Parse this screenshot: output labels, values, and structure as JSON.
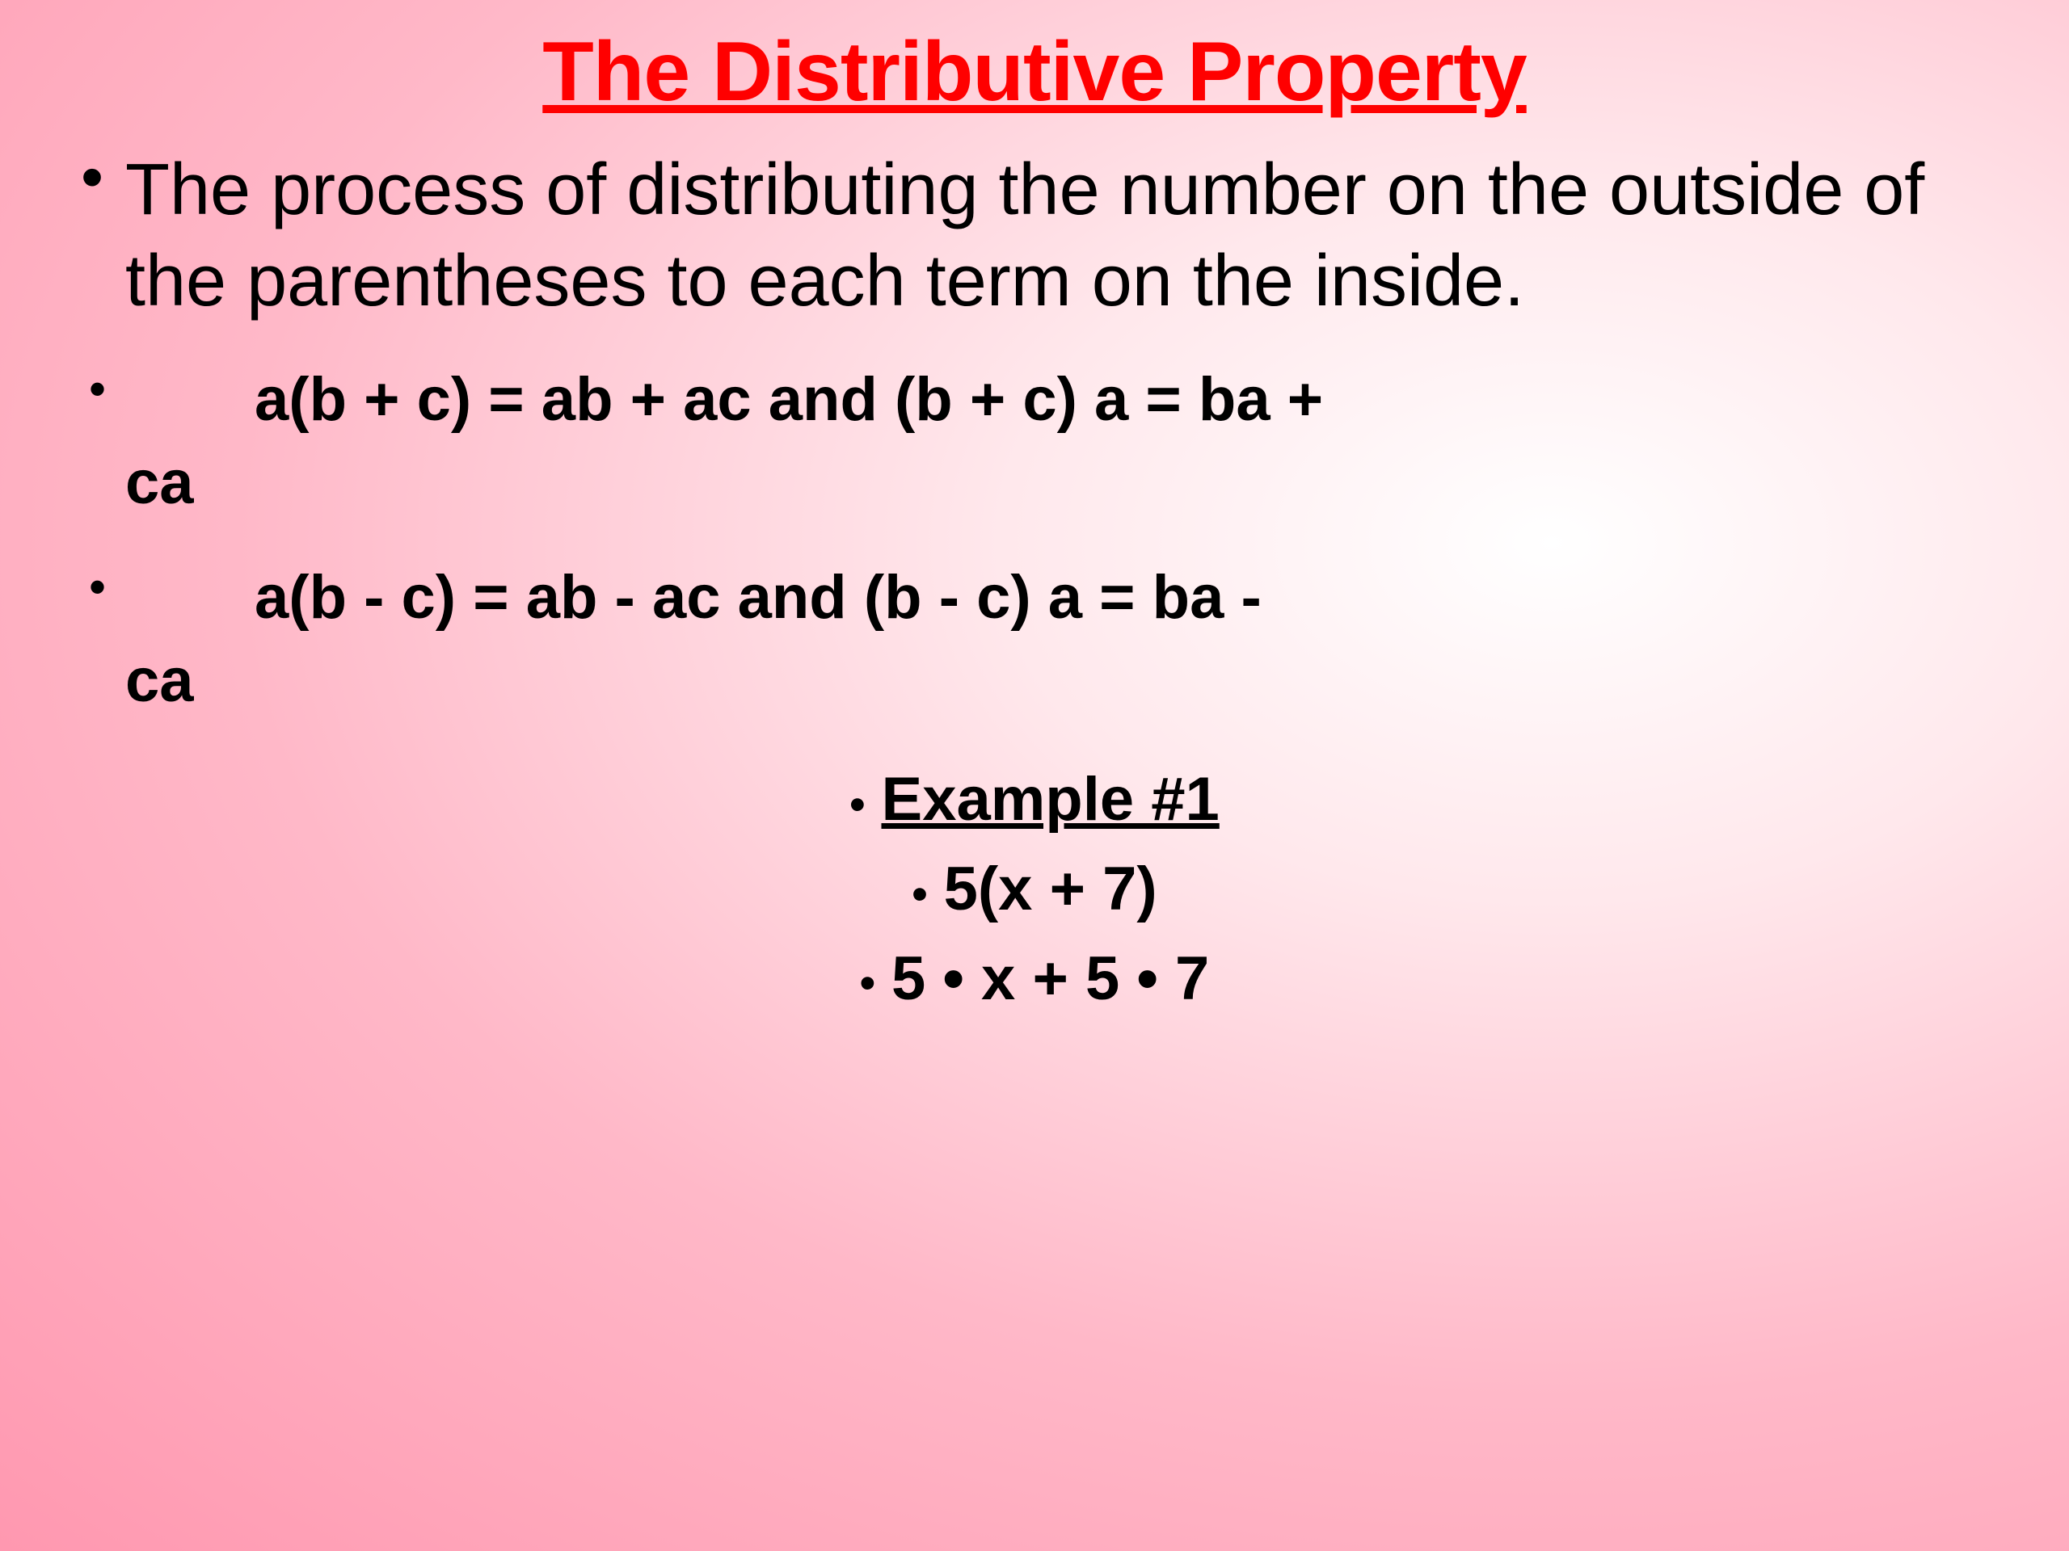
{
  "slide": {
    "title": "The Distributive Property",
    "title_color": "#ff0000",
    "body_color": "#000000",
    "background_gradient": {
      "type": "radial",
      "center": "75% 35%",
      "stops": [
        "#ffffff",
        "#ffe8ec",
        "#ffb8c8",
        "#ff98b0"
      ]
    },
    "definition": "The process of distributing the number on the outside of the parentheses to each term on the inside.",
    "formulas": [
      {
        "line1": "a(b + c) = ab + ac    and  (b + c) a = ba +",
        "line2": "ca"
      },
      {
        "line1": "a(b -  c) = ab - ac     and  (b -  c) a = ba -",
        "line2": "ca"
      }
    ],
    "example": {
      "header": "Example #1",
      "step1": "5(x + 7)",
      "step2": "5 • x + 5 • 7"
    },
    "typography": {
      "title_fontsize": 104,
      "definition_fontsize": 90,
      "formula_fontsize": 76,
      "example_fontsize": 76,
      "font_family": "Arial"
    }
  }
}
